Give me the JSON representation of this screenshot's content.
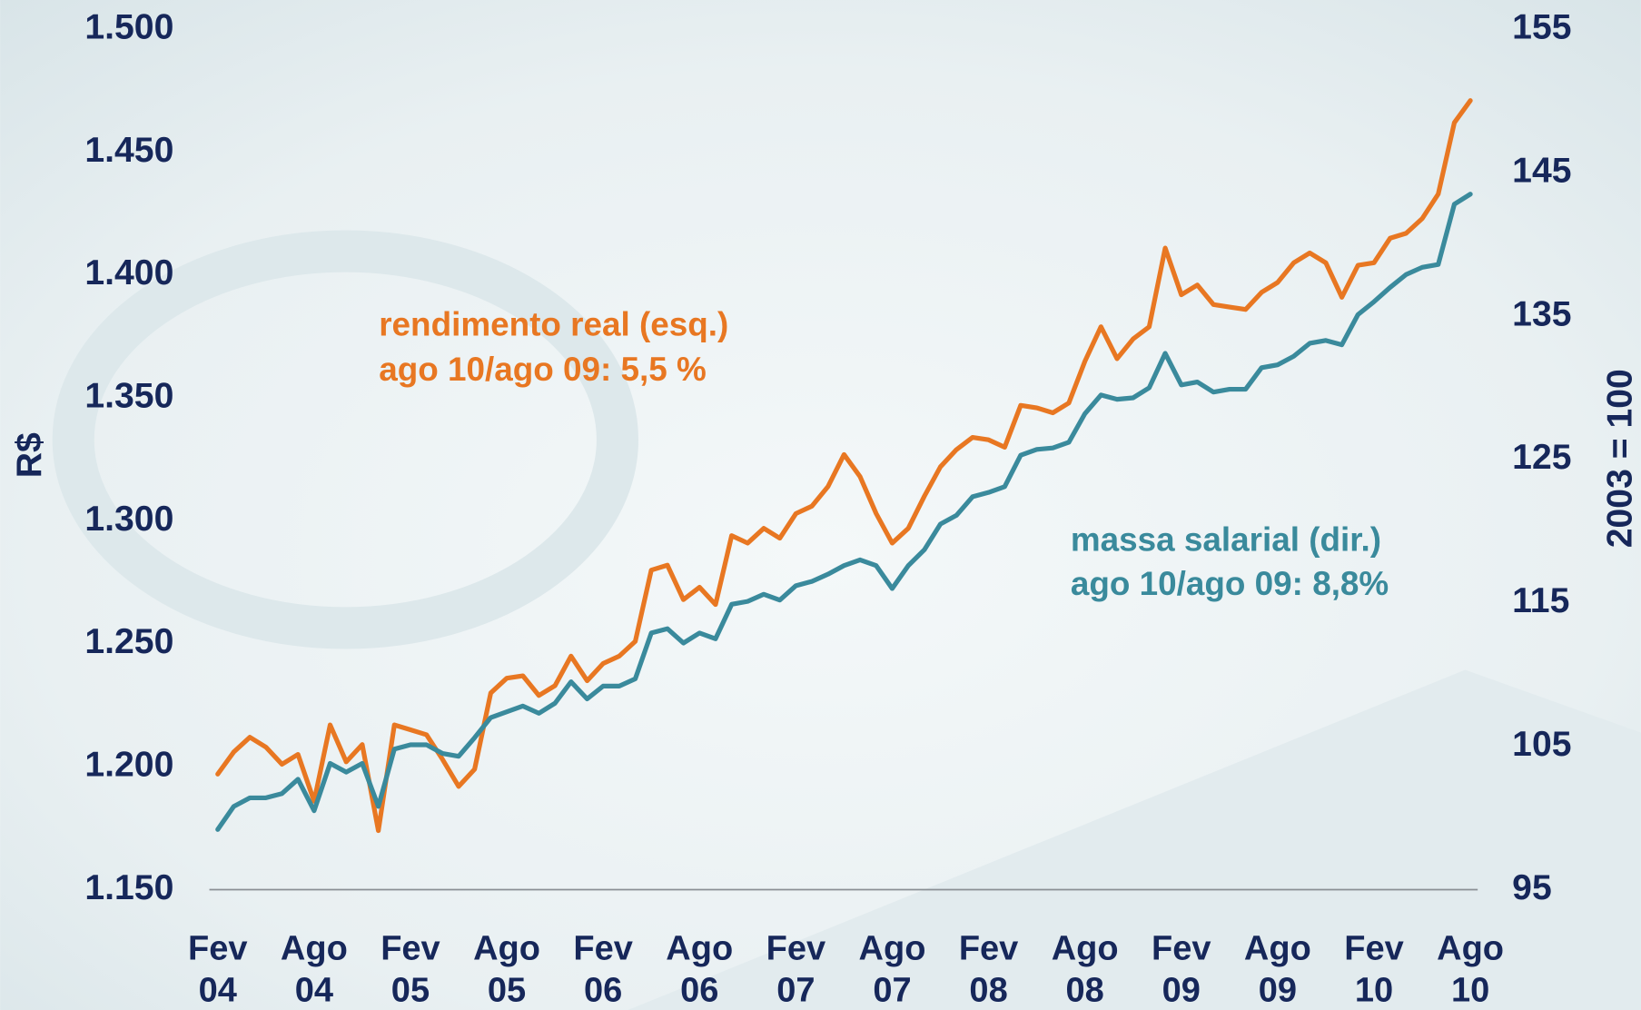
{
  "chart_data": {
    "type": "line",
    "y_label": "R$",
    "y2_label": "2003 = 100",
    "categories": [
      "Fev 04",
      null,
      null,
      null,
      null,
      null,
      "Ago 04",
      null,
      null,
      null,
      null,
      null,
      "Fev 05",
      null,
      null,
      null,
      null,
      null,
      "Ago 05",
      null,
      null,
      null,
      null,
      null,
      "Fev 06",
      null,
      null,
      null,
      null,
      null,
      "Ago 06",
      null,
      null,
      null,
      null,
      null,
      "Fev 07",
      null,
      null,
      null,
      null,
      null,
      "Ago 07",
      null,
      null,
      null,
      null,
      null,
      "Fev 08",
      null,
      null,
      null,
      null,
      null,
      "Ago 08",
      null,
      null,
      null,
      null,
      null,
      "Fev 09",
      null,
      null,
      null,
      null,
      null,
      "Ago 09",
      null,
      null,
      null,
      null,
      null,
      "Fev 10",
      null,
      null,
      null,
      null,
      null,
      "Ago 10"
    ],
    "series": [
      {
        "name": "rendimento real (esq.)",
        "color": "#e87722",
        "axis": "y",
        "values": [
          1.197,
          1.206,
          1.212,
          1.208,
          1.201,
          1.205,
          1.186,
          1.217,
          1.202,
          1.209,
          1.174,
          1.217,
          1.215,
          1.213,
          1.203,
          1.192,
          1.199,
          1.23,
          1.236,
          1.237,
          1.229,
          1.233,
          1.245,
          1.235,
          1.242,
          1.245,
          1.251,
          1.28,
          1.282,
          1.268,
          1.273,
          1.266,
          1.294,
          1.291,
          1.297,
          1.293,
          1.303,
          1.306,
          1.314,
          1.327,
          1.318,
          1.303,
          1.291,
          1.297,
          1.31,
          1.322,
          1.329,
          1.334,
          1.333,
          1.33,
          1.347,
          1.346,
          1.344,
          1.348,
          1.365,
          1.379,
          1.366,
          1.374,
          1.379,
          1.411,
          1.392,
          1.396,
          1.388,
          1.387,
          1.386,
          1.393,
          1.397,
          1.405,
          1.409,
          1.405,
          1.391,
          1.404,
          1.405,
          1.415,
          1.417,
          1.423,
          1.433,
          1.462,
          1.471
        ]
      },
      {
        "name": "massa salarial (dir.)",
        "color": "#3a8a9c",
        "axis": "y2",
        "values": [
          99.2,
          100.8,
          101.4,
          101.4,
          101.7,
          102.7,
          100.5,
          103.8,
          103.2,
          103.8,
          100.8,
          104.8,
          105.1,
          105.1,
          104.5,
          104.3,
          105.6,
          107.0,
          107.4,
          107.8,
          107.3,
          108.0,
          109.5,
          108.3,
          109.2,
          109.2,
          109.7,
          112.9,
          113.2,
          112.2,
          112.9,
          112.5,
          114.9,
          115.1,
          115.6,
          115.2,
          116.2,
          116.5,
          117.0,
          117.6,
          118.0,
          117.6,
          116.0,
          117.6,
          118.7,
          120.5,
          121.1,
          122.4,
          122.7,
          123.1,
          125.3,
          125.7,
          125.8,
          126.2,
          128.2,
          129.5,
          129.2,
          129.3,
          130.0,
          132.4,
          130.2,
          130.4,
          129.7,
          129.9,
          129.9,
          131.4,
          131.6,
          132.2,
          133.1,
          133.3,
          133.0,
          135.1,
          136.0,
          137.0,
          137.9,
          138.4,
          138.6,
          142.8,
          143.5
        ]
      }
    ],
    "annotations": [
      {
        "text": "rendimento real (esq.)",
        "color": "#e87722"
      },
      {
        "text": "ago 10/ago 09: 5,5 %",
        "color": "#e87722"
      },
      {
        "text": "massa salarial (dir.)",
        "color": "#3a8a9c"
      },
      {
        "text": "ago 10/ago 09: 8,8%",
        "color": "#3a8a9c"
      }
    ],
    "ylim": [
      1.15,
      1.5
    ],
    "yticks": [
      {
        "value": 1.15,
        "label": "1.150"
      },
      {
        "value": 1.2,
        "label": "1.200"
      },
      {
        "value": 1.25,
        "label": "1.250"
      },
      {
        "value": 1.3,
        "label": "1.300"
      },
      {
        "value": 1.35,
        "label": "1.350"
      },
      {
        "value": 1.4,
        "label": "1.400"
      },
      {
        "value": 1.45,
        "label": "1.450"
      },
      {
        "value": 1.5,
        "label": "1.500"
      }
    ],
    "y2lim": [
      95,
      155
    ],
    "y2ticks": [
      95,
      105,
      115,
      125,
      135,
      145,
      155
    ],
    "grid": false
  }
}
